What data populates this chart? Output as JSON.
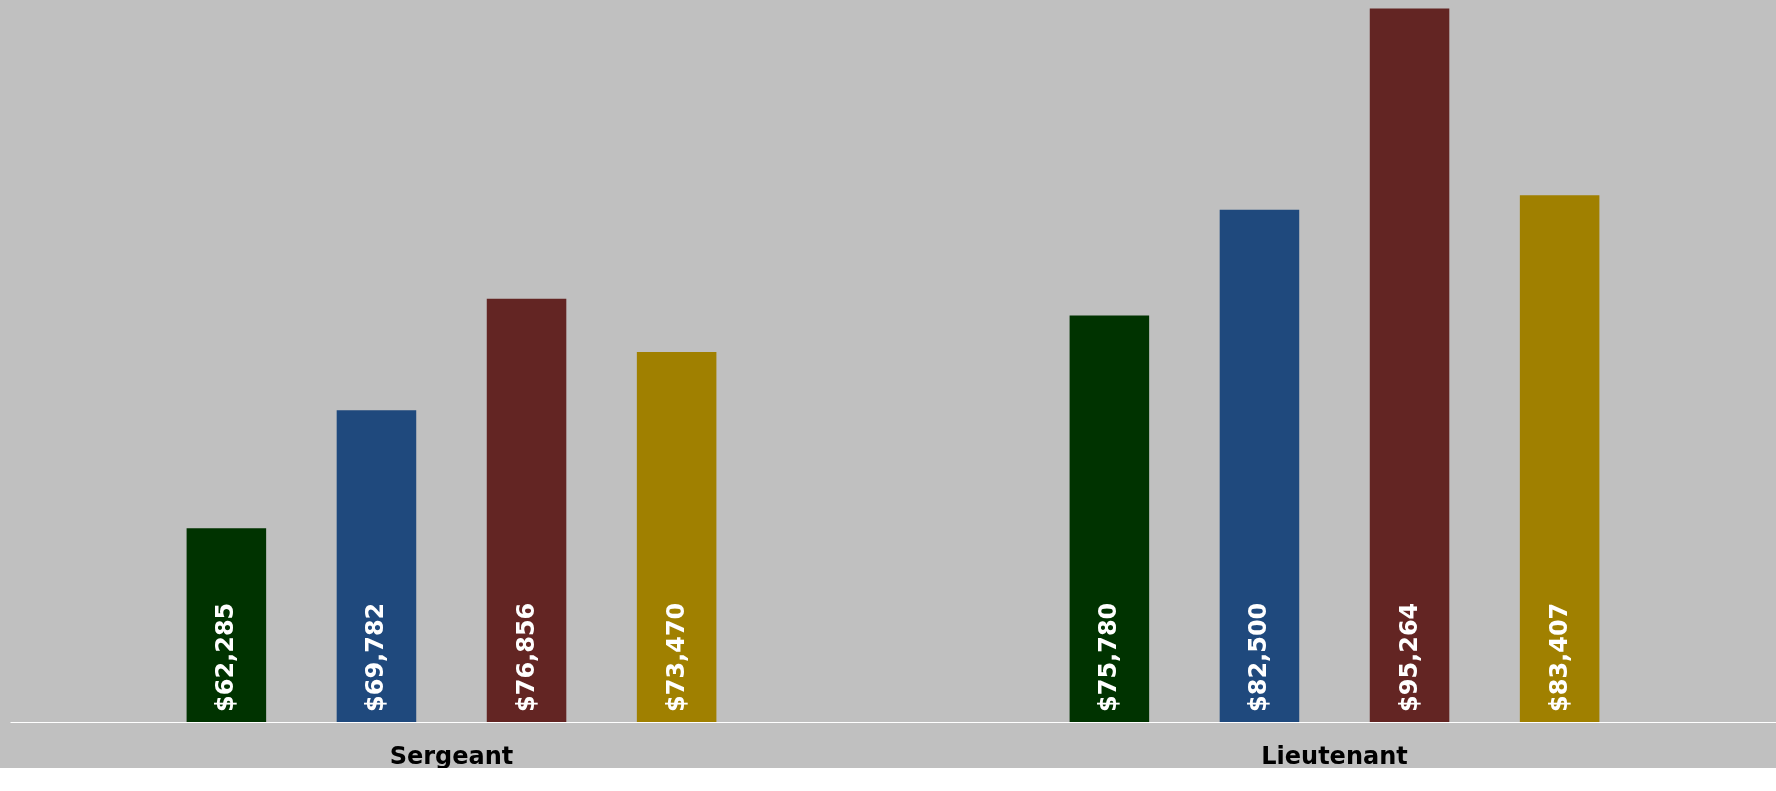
{
  "chart_data": {
    "type": "bar",
    "categories": [
      "Sergeant",
      "Lieutenant"
    ],
    "series": [
      {
        "color": "#003300",
        "values": [
          62285,
          75780
        ],
        "value_labels": [
          "$62,285",
          "$75,780"
        ]
      },
      {
        "color": "#1f497d",
        "values": [
          69782,
          82500
        ],
        "value_labels": [
          "$69,782",
          "$82,500"
        ]
      },
      {
        "color": "#632523",
        "values": [
          76856,
          95264
        ],
        "value_labels": [
          "$76,856",
          "$95,264"
        ]
      },
      {
        "color": "#a08000",
        "values": [
          73470,
          83407
        ],
        "value_labels": [
          "$73,470",
          "$83,407"
        ]
      }
    ],
    "ylim": [
      50000,
      95800
    ],
    "tick_labels": "x",
    "grid": false
  }
}
